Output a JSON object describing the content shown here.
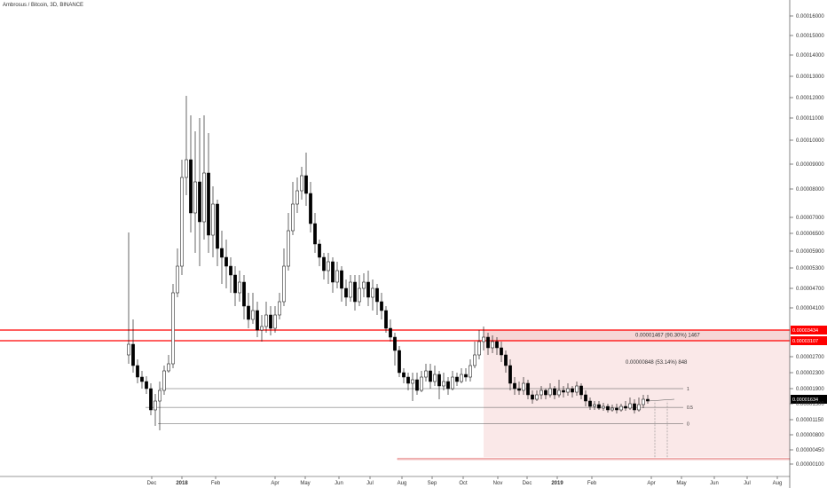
{
  "chart_title": "Ambrosus / Bitcoin, 3D, BINANCE",
  "chart_data": {
    "type": "candlestick",
    "symbol": "Ambrosus / Bitcoin",
    "interval": "3D",
    "exchange": "BINANCE",
    "y_scale": "log",
    "ylim": [
      3e-07,
      1.8e-05
    ],
    "y_ticks": [
      {
        "value": 0.00016,
        "label": "0.00016000"
      },
      {
        "value": 0.00015,
        "label": "0.00015000"
      },
      {
        "value": 0.00014,
        "label": "0.00014000"
      },
      {
        "value": 0.00013,
        "label": "0.00013000"
      },
      {
        "value": 0.00012,
        "label": "0.00012000"
      },
      {
        "value": 0.00011,
        "label": "0.00011000"
      },
      {
        "value": 0.0001,
        "label": "0.00010000"
      },
      {
        "value": 9e-05,
        "label": "0.00009000"
      },
      {
        "value": 8e-05,
        "label": "0.00008000"
      },
      {
        "value": 7e-05,
        "label": "0.00007000"
      },
      {
        "value": 6.5e-05,
        "label": "0.00006500"
      },
      {
        "value": 5.9e-05,
        "label": "0.00005900"
      },
      {
        "value": 5.3e-05,
        "label": "0.00005300"
      },
      {
        "value": 4.7e-05,
        "label": "0.00004700"
      },
      {
        "value": 4.1e-05,
        "label": "0.00004100"
      },
      {
        "value": 3.434e-05,
        "label": "0.00003434",
        "tag": true
      },
      {
        "value": 3.107e-05,
        "label": "0.00003107",
        "tag": true
      },
      {
        "value": 2.7e-05,
        "label": "0.00002700"
      },
      {
        "value": 2.3e-05,
        "label": "0.00002300"
      },
      {
        "value": 1.9e-05,
        "label": "0.00001900"
      },
      {
        "value": 1.634e-05,
        "label": "0.00001634",
        "tag": true,
        "dark": true
      },
      {
        "value": 1.5e-05,
        "label": "0.00001500"
      },
      {
        "value": 1.15e-05,
        "label": "0.00001150"
      },
      {
        "value": 8e-06,
        "label": "0.00000800"
      },
      {
        "value": 4.5e-06,
        "label": "0.00000450"
      },
      {
        "value": 1e-06,
        "label": "0.00000100"
      }
    ],
    "x_ticks": [
      {
        "label": "Dec",
        "bold": false
      },
      {
        "label": "2018",
        "bold": true
      },
      {
        "label": "Feb",
        "bold": false
      },
      {
        "label": "Apr",
        "bold": false
      },
      {
        "label": "May",
        "bold": false
      },
      {
        "label": "Jun",
        "bold": false
      },
      {
        "label": "Jul",
        "bold": false
      },
      {
        "label": "Aug",
        "bold": false
      },
      {
        "label": "Sep",
        "bold": false
      },
      {
        "label": "Oct",
        "bold": false
      },
      {
        "label": "Nov",
        "bold": false
      },
      {
        "label": "Dec",
        "bold": false
      },
      {
        "label": "2019",
        "bold": true
      },
      {
        "label": "Feb",
        "bold": false
      },
      {
        "label": "Apr",
        "bold": false
      },
      {
        "label": "May",
        "bold": false
      },
      {
        "label": "Jun",
        "bold": false
      },
      {
        "label": "Jul",
        "bold": false
      },
      {
        "label": "Aug",
        "bold": false
      }
    ],
    "annotations": {
      "measure_upper": "0.00001467 (90.30%) 1467",
      "measure_lower": "0.00000848 (53.14%) 848",
      "fib_levels": [
        {
          "label": "1",
          "value": 1.9e-05
        },
        {
          "label": "0.5",
          "value": 1.42e-05
        },
        {
          "label": "0",
          "value": 1.06e-05
        }
      ],
      "resistance_lines": [
        3.434e-05,
        3.107e-05
      ]
    },
    "colors": {
      "candle_up": "#ffffff",
      "candle_down": "#000000",
      "candle_border": "#000000",
      "resistance_line": "#ff0000",
      "zone_fill": "#f4cccc",
      "price_tag_red": "#ff0000",
      "price_tag_dark": "#000000"
    }
  }
}
